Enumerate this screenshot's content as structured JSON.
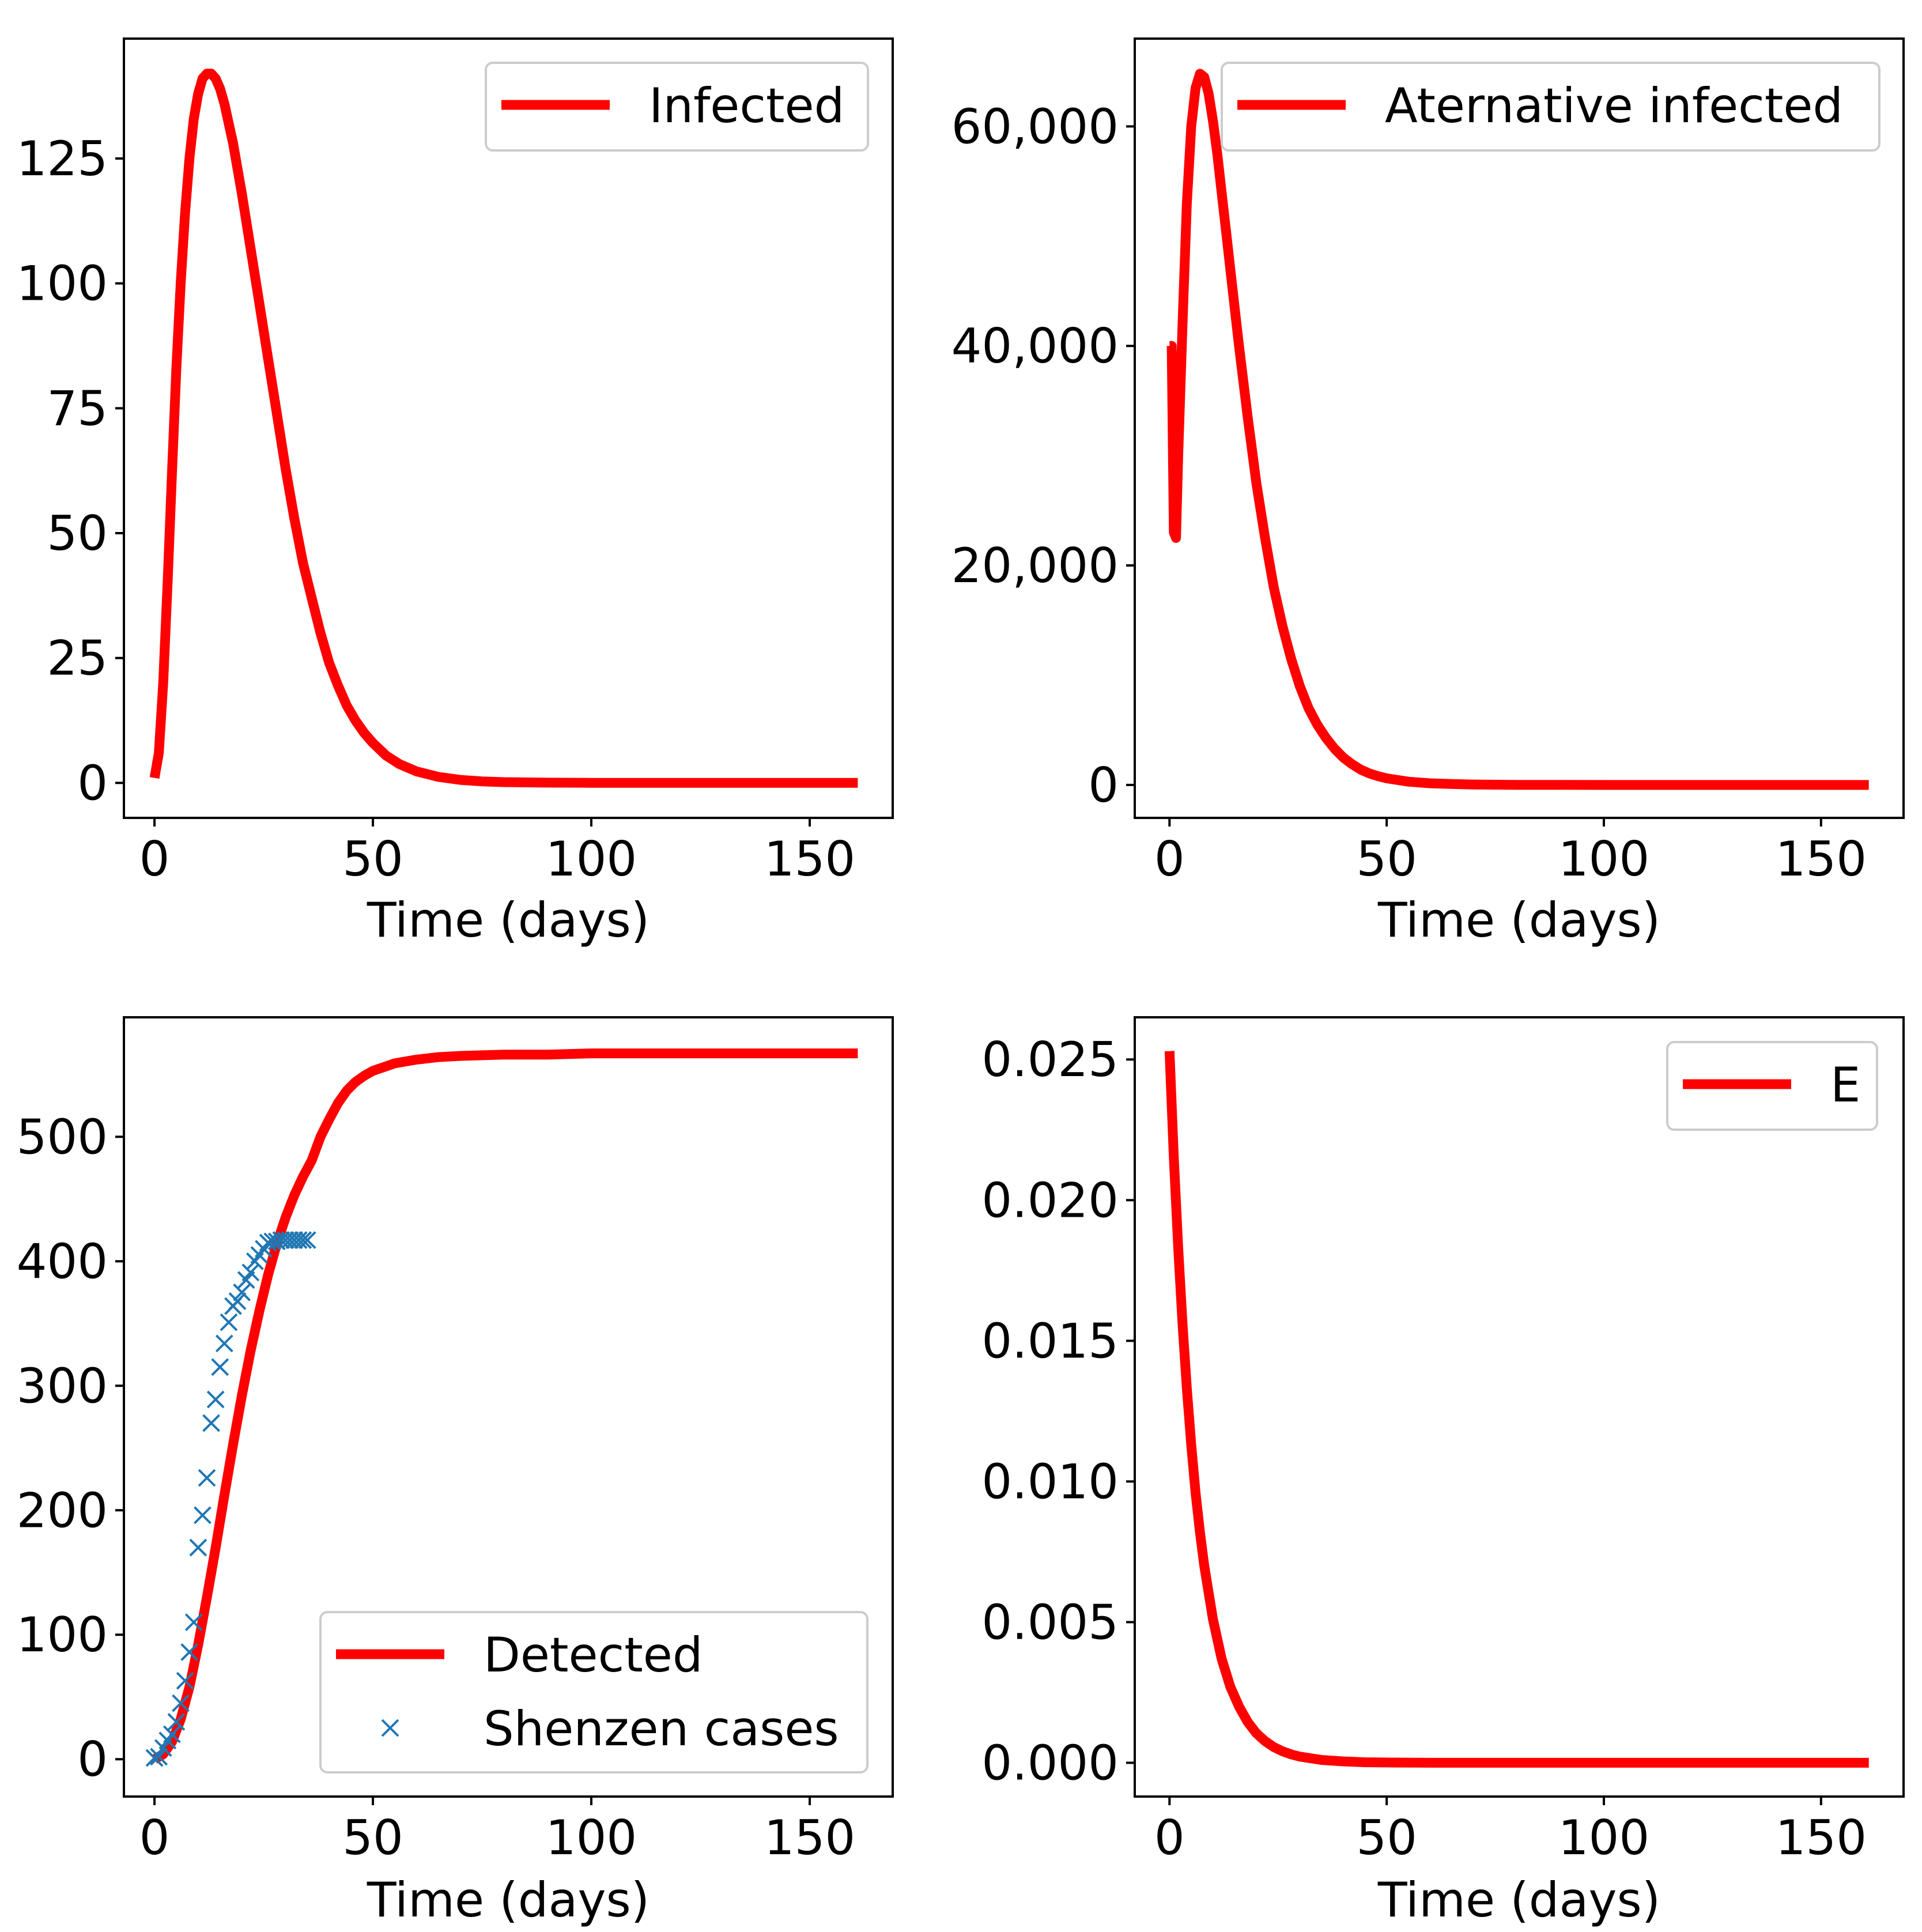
{
  "colors": {
    "model_line": "#ff0000",
    "marker": "#1f77b4",
    "axis": "#000000",
    "background": "#ffffff",
    "legend_border": "#cccccc"
  },
  "chart_data": [
    {
      "type": "line",
      "panel": "top-left",
      "xlabel": "Time (days)",
      "ylabel": "",
      "xlim": [
        -7,
        169
      ],
      "ylim": [
        -7,
        149
      ],
      "xticks": [
        0,
        50,
        100,
        150
      ],
      "xtick_labels": [
        "0",
        "50",
        "100",
        "150"
      ],
      "yticks": [
        0,
        25,
        50,
        75,
        100,
        125
      ],
      "ytick_labels": [
        "0",
        "25",
        "50",
        "75",
        "100",
        "125"
      ],
      "legend_position": "top-right",
      "series": [
        {
          "name": "Infected",
          "style": "line",
          "x": [
            0,
            1,
            2,
            3,
            4,
            5,
            6,
            7,
            8,
            9,
            10,
            11,
            12,
            13,
            14,
            15,
            16,
            17,
            18,
            20,
            22,
            24,
            26,
            28,
            30,
            32,
            34,
            36,
            38,
            40,
            42,
            44,
            46,
            48,
            50,
            53,
            56,
            60,
            65,
            70,
            75,
            80,
            90,
            100,
            110,
            120,
            130,
            140,
            150,
            161
          ],
          "y": [
            1,
            6,
            20,
            40,
            62,
            83,
            100,
            114,
            125,
            133,
            138,
            141,
            142,
            142,
            141,
            139,
            136,
            132,
            128,
            118,
            107,
            96,
            85,
            74,
            63,
            53,
            44,
            37,
            30,
            24,
            19.5,
            15.5,
            12.5,
            10,
            8,
            5.5,
            3.8,
            2.3,
            1.2,
            0.6,
            0.3,
            0.15,
            0.05,
            0.02,
            0,
            0,
            0,
            0,
            0,
            0
          ]
        }
      ]
    },
    {
      "type": "line",
      "panel": "top-right",
      "xlabel": "Time (days)",
      "ylabel": "",
      "xlim": [
        -8,
        169
      ],
      "ylim": [
        -3000,
        68000
      ],
      "xticks": [
        0,
        50,
        100,
        150
      ],
      "xtick_labels": [
        "0",
        "50",
        "100",
        "150"
      ],
      "yticks": [
        0,
        20000,
        40000,
        60000
      ],
      "ytick_labels": [
        "0",
        "20,000",
        "40,000",
        "60,000"
      ],
      "legend_position": "top-right",
      "series": [
        {
          "name": "Aternative infected",
          "style": "line",
          "x": [
            0,
            0.5,
            1,
            1.5,
            2,
            3,
            4,
            5,
            6,
            7,
            8,
            9,
            10,
            11,
            12,
            13,
            14,
            15,
            16,
            18,
            20,
            22,
            24,
            26,
            28,
            30,
            32,
            34,
            36,
            38,
            40,
            42,
            44,
            46,
            48,
            50,
            55,
            60,
            65,
            70,
            80,
            90,
            100,
            120,
            140,
            161
          ],
          "y": [
            40000,
            40000,
            23000,
            22500,
            30000,
            42000,
            53000,
            60000,
            63500,
            64800,
            64500,
            63000,
            60500,
            57500,
            54000,
            50500,
            47000,
            43500,
            40000,
            33500,
            27500,
            22500,
            18000,
            14500,
            11500,
            9000,
            7000,
            5500,
            4300,
            3300,
            2500,
            1900,
            1400,
            1050,
            800,
            600,
            300,
            150,
            80,
            40,
            10,
            3,
            1,
            0,
            0,
            0
          ]
        }
      ]
    },
    {
      "type": "line",
      "panel": "bottom-left",
      "xlabel": "Time (days)",
      "ylabel": "",
      "xlim": [
        -7,
        169
      ],
      "ylim": [
        -30,
        596
      ],
      "xticks": [
        0,
        50,
        100,
        150
      ],
      "xtick_labels": [
        "0",
        "50",
        "100",
        "150"
      ],
      "yticks": [
        0,
        100,
        200,
        300,
        400,
        500
      ],
      "ytick_labels": [
        "0",
        "100",
        "200",
        "300",
        "400",
        "500"
      ],
      "legend_position": "bottom-right",
      "series": [
        {
          "name": "Detected",
          "style": "line",
          "x": [
            0,
            2,
            4,
            6,
            8,
            10,
            12,
            14,
            16,
            18,
            20,
            22,
            24,
            26,
            28,
            30,
            32,
            34,
            36,
            38,
            40,
            42,
            44,
            46,
            48,
            50,
            55,
            60,
            65,
            70,
            80,
            90,
            100,
            120,
            140,
            161
          ],
          "y": [
            0,
            4,
            14,
            32,
            58,
            92,
            130,
            170,
            212,
            253,
            292,
            328,
            360,
            389,
            414,
            435,
            453,
            468,
            481,
            500,
            514,
            527,
            537,
            544,
            549,
            553,
            559,
            562,
            564,
            565,
            566,
            566,
            567,
            567,
            567,
            567
          ]
        },
        {
          "name": "Shenzen cases",
          "style": "markers",
          "x": [
            0,
            1,
            2,
            3,
            4,
            5,
            6,
            7,
            8,
            9,
            10,
            11,
            12,
            13,
            14,
            15,
            16,
            17,
            18,
            19,
            20,
            21,
            22,
            23,
            24,
            25,
            26,
            27,
            28,
            29,
            30,
            31,
            32,
            33,
            34,
            35
          ],
          "y": [
            1,
            2,
            9,
            15,
            20,
            30,
            45,
            63,
            86,
            110,
            170,
            196,
            226,
            270,
            289,
            315,
            334,
            351,
            364,
            368,
            375,
            385,
            391,
            400,
            405,
            410,
            415,
            416,
            416,
            417,
            417,
            417,
            417,
            417,
            417,
            417
          ]
        }
      ]
    },
    {
      "type": "line",
      "panel": "bottom-right",
      "xlabel": "Time (days)",
      "ylabel": "",
      "xlim": [
        -8,
        169
      ],
      "ylim": [
        -0.0012,
        0.0265
      ],
      "xticks": [
        0,
        50,
        100,
        150
      ],
      "xtick_labels": [
        "0",
        "50",
        "100",
        "150"
      ],
      "yticks": [
        0,
        0.005,
        0.01,
        0.015,
        0.02,
        0.025
      ],
      "ytick_labels": [
        "0.000",
        "0.005",
        "0.010",
        "0.015",
        "0.020",
        "0.025"
      ],
      "legend_position": "top-right",
      "series": [
        {
          "name": "E",
          "style": "line",
          "x": [
            0,
            1,
            2,
            3,
            4,
            5,
            6,
            7,
            8,
            10,
            12,
            14,
            16,
            18,
            20,
            22,
            24,
            26,
            28,
            30,
            35,
            40,
            45,
            50,
            60,
            70,
            80,
            100,
            120,
            140,
            161
          ],
          "y": [
            0.0253,
            0.0215,
            0.0183,
            0.0156,
            0.0133,
            0.0113,
            0.0096,
            0.0082,
            0.007,
            0.0051,
            0.0037,
            0.0027,
            0.002,
            0.00145,
            0.00105,
            0.00077,
            0.00056,
            0.00041,
            0.0003,
            0.00022,
            0.0001,
            5e-05,
            2e-05,
            1e-05,
            0,
            0,
            0,
            0,
            0,
            0,
            0
          ]
        }
      ]
    }
  ]
}
